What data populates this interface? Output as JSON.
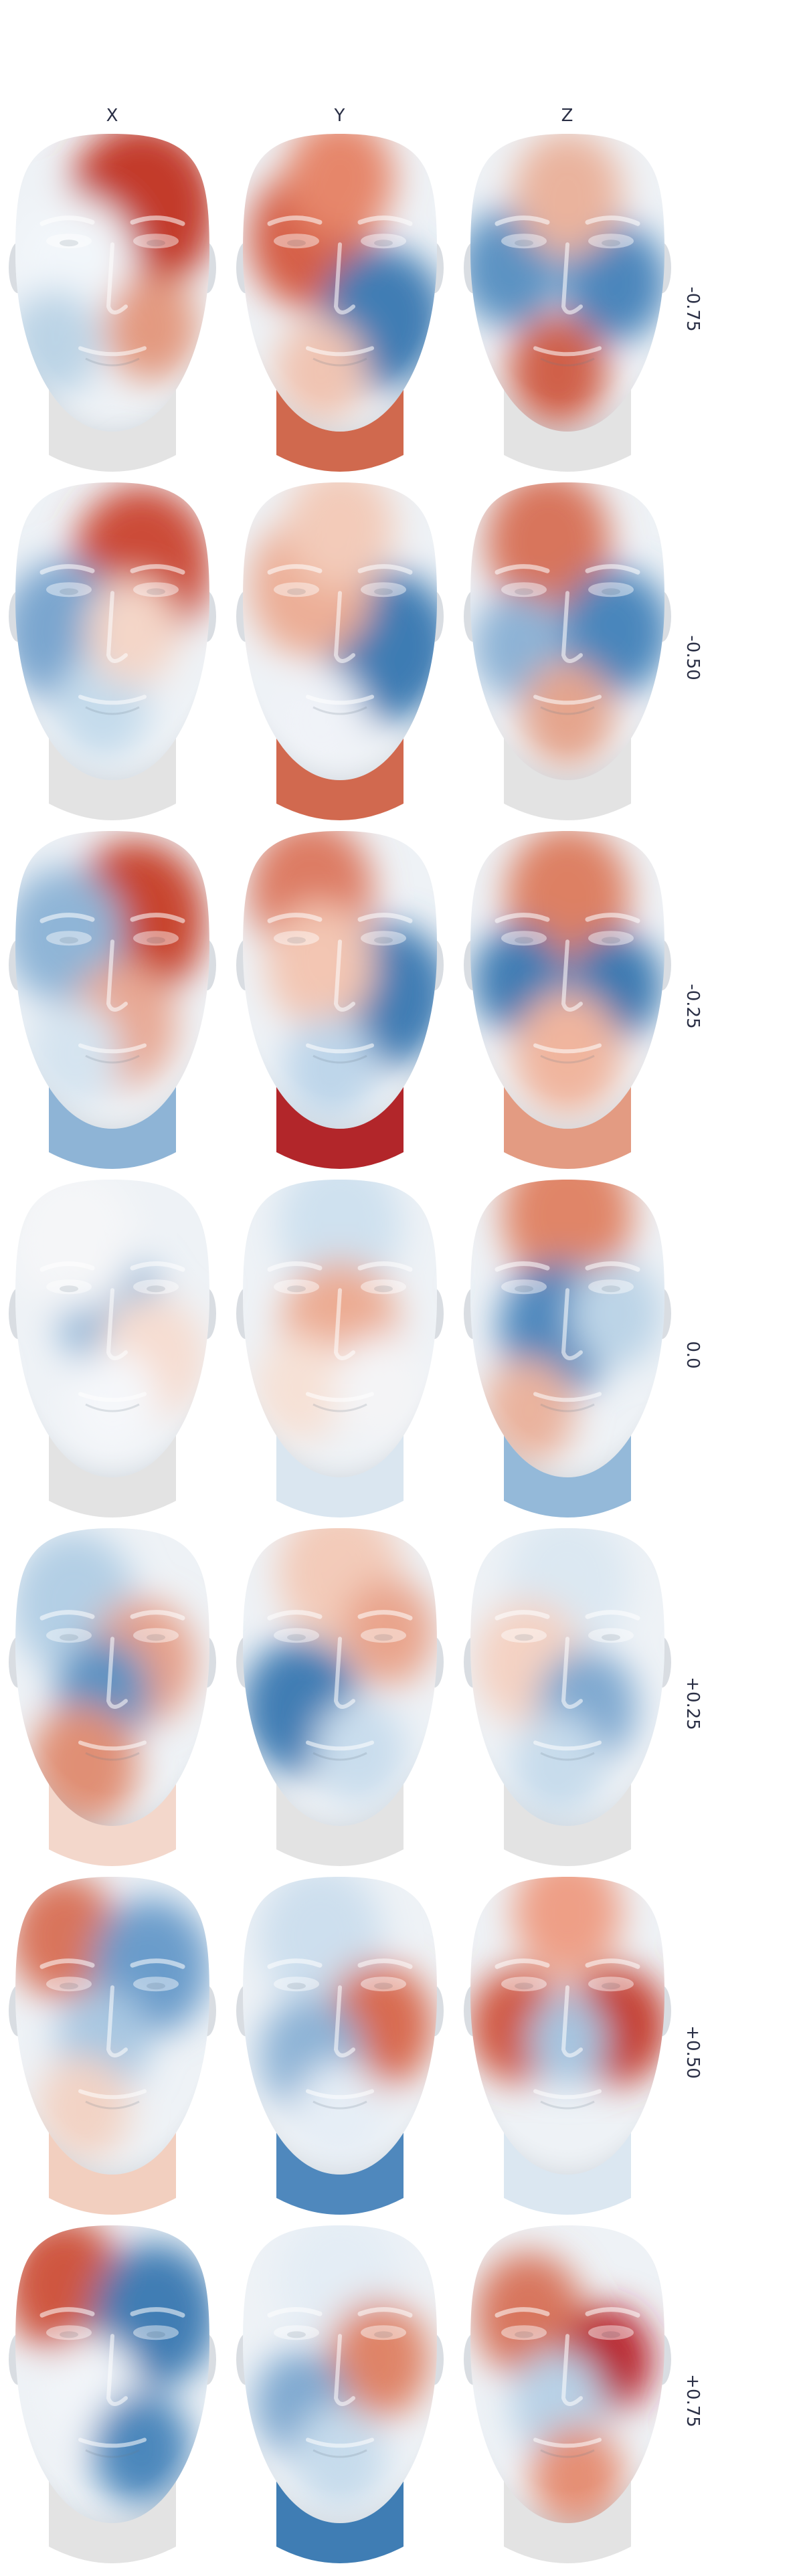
{
  "columns": [
    {
      "label": "X"
    },
    {
      "label": "Y"
    },
    {
      "label": "Z"
    }
  ],
  "rows": [
    {
      "label": "-0.75",
      "cells": [
        {
          "blobs": [
            [
              0.65,
              0.25,
              "#c33a2c",
              0.48
            ],
            [
              0.3,
              0.45,
              "#f2f6fa",
              0.4
            ],
            [
              0.2,
              0.7,
              "#bcd4e6",
              0.3
            ],
            [
              0.7,
              0.65,
              "#e39a80",
              0.3
            ]
          ],
          "neck": "#e3e3e3"
        },
        {
          "blobs": [
            [
              0.35,
              0.35,
              "#d55e46",
              0.4
            ],
            [
              0.72,
              0.62,
              "#3f7db4",
              0.4
            ],
            [
              0.4,
              0.8,
              "#f0c4b2",
              0.3
            ],
            [
              0.5,
              0.15,
              "#e6866b",
              0.35
            ]
          ],
          "neck": "#d0694e"
        },
        {
          "blobs": [
            [
              0.2,
              0.45,
              "#5c93c3",
              0.33
            ],
            [
              0.75,
              0.5,
              "#4b86bc",
              0.33
            ],
            [
              0.45,
              0.8,
              "#d06049",
              0.32
            ],
            [
              0.5,
              0.2,
              "#eab39d",
              0.35
            ]
          ],
          "neck": "#e3e3e3"
        }
      ]
    },
    {
      "label": "-0.50",
      "cells": [
        {
          "blobs": [
            [
              0.65,
              0.28,
              "#cc4b38",
              0.45
            ],
            [
              0.25,
              0.5,
              "#7aa6cf",
              0.4
            ],
            [
              0.45,
              0.75,
              "#c4dbec",
              0.3
            ],
            [
              0.6,
              0.5,
              "#f4d6c8",
              0.3
            ]
          ],
          "neck": "#e3e3e3"
        },
        {
          "blobs": [
            [
              0.75,
              0.55,
              "#3d7cb3",
              0.42
            ],
            [
              0.35,
              0.35,
              "#ecae96",
              0.4
            ],
            [
              0.4,
              0.8,
              "#f0f3f8",
              0.3
            ],
            [
              0.5,
              0.15,
              "#f3cbb9",
              0.35
            ]
          ],
          "neck": "#d1694f"
        },
        {
          "blobs": [
            [
              0.4,
              0.2,
              "#d8755c",
              0.4
            ],
            [
              0.75,
              0.5,
              "#4a86bc",
              0.35
            ],
            [
              0.25,
              0.55,
              "#8db3d6",
              0.3
            ],
            [
              0.5,
              0.78,
              "#e5a58d",
              0.3
            ]
          ],
          "neck": "#e3e3e3"
        }
      ]
    },
    {
      "label": "-0.25",
      "cells": [
        {
          "blobs": [
            [
              0.62,
              0.3,
              "#c8452f",
              0.45
            ],
            [
              0.25,
              0.35,
              "#8fb5d7",
              0.38
            ],
            [
              0.55,
              0.65,
              "#e8a994",
              0.35
            ],
            [
              0.3,
              0.75,
              "#d5e4f0",
              0.3
            ]
          ],
          "neck": "#8eb4d6"
        },
        {
          "blobs": [
            [
              0.35,
              0.2,
              "#dd7c63",
              0.4
            ],
            [
              0.75,
              0.55,
              "#3f7db4",
              0.4
            ],
            [
              0.4,
              0.45,
              "#f3c6b3",
              0.35
            ],
            [
              0.45,
              0.8,
              "#bed6ea",
              0.3
            ]
          ],
          "neck": "#b2262a"
        },
        {
          "blobs": [
            [
              0.5,
              0.22,
              "#dd8064",
              0.4
            ],
            [
              0.25,
              0.5,
              "#3f7db4",
              0.3
            ],
            [
              0.75,
              0.52,
              "#3b79b1",
              0.3
            ],
            [
              0.5,
              0.75,
              "#f0b59e",
              0.35
            ]
          ],
          "neck": "#e39b82"
        }
      ]
    },
    {
      "label": "0.0",
      "cells": [
        {
          "blobs": [
            [
              0.5,
              0.45,
              "#8fb5d7",
              0.35
            ],
            [
              0.3,
              0.2,
              "#f5f6f8",
              0.4
            ],
            [
              0.7,
              0.6,
              "#f6ddd1",
              0.35
            ],
            [
              0.5,
              0.75,
              "#f5f7fa",
              0.3
            ]
          ],
          "neck": "#e3e3e3"
        },
        {
          "blobs": [
            [
              0.5,
              0.15,
              "#cfe1ef",
              0.4
            ],
            [
              0.5,
              0.5,
              "#ecac93",
              0.38
            ],
            [
              0.3,
              0.7,
              "#f6e1d6",
              0.3
            ],
            [
              0.7,
              0.7,
              "#f4f4f6",
              0.3
            ]
          ],
          "neck": "#dae6f0"
        },
        {
          "blobs": [
            [
              0.5,
              0.12,
              "#e08567",
              0.42
            ],
            [
              0.45,
              0.5,
              "#4f88bd",
              0.38
            ],
            [
              0.3,
              0.78,
              "#eab39e",
              0.3
            ],
            [
              0.75,
              0.45,
              "#bcd4e7",
              0.3
            ]
          ],
          "neck": "#94b9d9"
        }
      ]
    },
    {
      "label": "+0.25",
      "cells": [
        {
          "blobs": [
            [
              0.3,
              0.25,
              "#b3cfe5",
              0.4
            ],
            [
              0.65,
              0.45,
              "#e6a08a",
              0.35
            ],
            [
              0.45,
              0.55,
              "#5c93c3",
              0.3
            ],
            [
              0.35,
              0.8,
              "#e08f75",
              0.35
            ]
          ],
          "neck": "#f3d7cb"
        },
        {
          "blobs": [
            [
              0.5,
              0.15,
              "#f3cbb9",
              0.4
            ],
            [
              0.3,
              0.6,
              "#3f7db4",
              0.38
            ],
            [
              0.75,
              0.35,
              "#e9a48c",
              0.3
            ],
            [
              0.6,
              0.75,
              "#c9dded",
              0.3
            ]
          ],
          "neck": "#e3e3e3"
        },
        {
          "blobs": [
            [
              0.5,
              0.18,
              "#dce8f2",
              0.4
            ],
            [
              0.3,
              0.45,
              "#f4d2c3",
              0.35
            ],
            [
              0.6,
              0.6,
              "#7fa9d0",
              0.32
            ],
            [
              0.45,
              0.8,
              "#c7dcec",
              0.3
            ]
          ],
          "neck": "#e3e3e3"
        }
      ]
    },
    {
      "label": "+0.50",
      "cells": [
        {
          "blobs": [
            [
              0.25,
              0.2,
              "#d9755c",
              0.35
            ],
            [
              0.7,
              0.3,
              "#6a9ccb",
              0.38
            ],
            [
              0.45,
              0.55,
              "#a9c8e2",
              0.3
            ],
            [
              0.35,
              0.78,
              "#f2d3c5",
              0.3
            ]
          ],
          "neck": "#f2cfbf"
        },
        {
          "blobs": [
            [
              0.4,
              0.2,
              "#cddfee",
              0.4
            ],
            [
              0.7,
              0.5,
              "#d86a50",
              0.35
            ],
            [
              0.35,
              0.6,
              "#8db3d6",
              0.33
            ],
            [
              0.5,
              0.8,
              "#e6eef6",
              0.3
            ]
          ],
          "neck": "#4f88bd"
        },
        {
          "blobs": [
            [
              0.5,
              0.12,
              "#ee9f86",
              0.35
            ],
            [
              0.25,
              0.5,
              "#d0573f",
              0.32
            ],
            [
              0.75,
              0.5,
              "#c43c2e",
              0.33
            ],
            [
              0.5,
              0.55,
              "#a6c6e1",
              0.25
            ]
          ],
          "neck": "#dbe7f1"
        }
      ]
    },
    {
      "label": "+0.75",
      "cells": [
        {
          "blobs": [
            [
              0.25,
              0.2,
              "#cf563f",
              0.38
            ],
            [
              0.72,
              0.3,
              "#3f7db4",
              0.4
            ],
            [
              0.4,
              0.55,
              "#f2f5f9",
              0.3
            ],
            [
              0.65,
              0.75,
              "#4c87bc",
              0.32
            ]
          ],
          "neck": "#e3e3e3"
        },
        {
          "blobs": [
            [
              0.5,
              0.18,
              "#e4edf5",
              0.4
            ],
            [
              0.7,
              0.45,
              "#df8468",
              0.33
            ],
            [
              0.3,
              0.6,
              "#7fa9d0",
              0.3
            ],
            [
              0.5,
              0.78,
              "#c6dbec",
              0.3
            ]
          ],
          "neck": "#3f7db4"
        },
        {
          "blobs": [
            [
              0.3,
              0.3,
              "#d8765d",
              0.35
            ],
            [
              0.7,
              0.45,
              "#b8202b",
              0.3
            ],
            [
              0.45,
              0.6,
              "#b8d2e7",
              0.3
            ],
            [
              0.55,
              0.85,
              "#e58f75",
              0.3
            ]
          ],
          "neck": "#e3e3e3"
        }
      ]
    }
  ]
}
